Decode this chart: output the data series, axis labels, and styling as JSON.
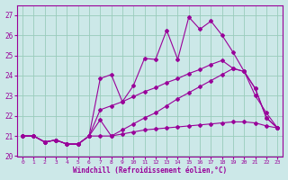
{
  "xlabel": "Windchill (Refroidissement éolien,°C)",
  "background_color": "#cce8e8",
  "grid_color": "#99ccbb",
  "line_color": "#990099",
  "ylim": [
    20,
    27.5
  ],
  "xlim": [
    -0.5,
    23.5
  ],
  "yticks": [
    20,
    21,
    22,
    23,
    24,
    25,
    26,
    27
  ],
  "xticks": [
    0,
    1,
    2,
    3,
    4,
    5,
    6,
    7,
    8,
    9,
    10,
    11,
    12,
    13,
    14,
    15,
    16,
    17,
    18,
    19,
    20,
    21,
    22,
    23
  ],
  "series": [
    {
      "x": [
        0,
        1,
        2,
        3,
        4,
        5,
        6,
        7,
        8,
        9,
        10,
        11,
        12,
        13,
        14,
        15,
        16,
        17,
        18,
        19,
        20,
        21,
        22,
        23
      ],
      "y": [
        21.0,
        21.0,
        20.7,
        20.8,
        20.6,
        20.6,
        21.0,
        21.0,
        21.0,
        21.1,
        21.2,
        21.3,
        21.35,
        21.4,
        21.45,
        21.5,
        21.55,
        21.6,
        21.65,
        21.7,
        21.7,
        21.65,
        21.5,
        21.4
      ]
    },
    {
      "x": [
        0,
        1,
        2,
        3,
        4,
        5,
        6,
        7,
        8,
        9,
        10,
        11,
        12,
        13,
        14,
        15,
        16,
        17,
        18,
        19,
        20,
        21,
        22,
        23
      ],
      "y": [
        21.0,
        21.0,
        20.7,
        20.8,
        20.6,
        20.6,
        21.0,
        23.85,
        24.05,
        22.7,
        23.5,
        24.85,
        24.8,
        26.25,
        24.8,
        26.9,
        26.3,
        26.7,
        26.0,
        25.15,
        24.2,
        23.0,
        22.15,
        21.4
      ]
    },
    {
      "x": [
        0,
        1,
        2,
        3,
        4,
        5,
        6,
        7,
        8,
        9,
        10,
        11,
        12,
        13,
        14,
        15,
        16,
        17,
        18,
        19,
        20,
        21,
        22,
        23
      ],
      "y": [
        21.0,
        21.0,
        20.7,
        20.8,
        20.6,
        20.6,
        21.0,
        22.3,
        22.5,
        22.7,
        22.95,
        23.2,
        23.4,
        23.65,
        23.85,
        24.1,
        24.3,
        24.55,
        24.75,
        24.35,
        24.2,
        23.35,
        21.9,
        21.4
      ]
    },
    {
      "x": [
        0,
        1,
        2,
        3,
        4,
        5,
        6,
        7,
        8,
        9,
        10,
        11,
        12,
        13,
        14,
        15,
        16,
        17,
        18,
        19,
        20,
        21,
        22,
        23
      ],
      "y": [
        21.0,
        21.0,
        20.7,
        20.8,
        20.6,
        20.6,
        21.0,
        21.8,
        21.0,
        21.3,
        21.6,
        21.9,
        22.15,
        22.5,
        22.85,
        23.15,
        23.45,
        23.75,
        24.05,
        24.35,
        24.2,
        23.35,
        21.9,
        21.4
      ]
    }
  ]
}
